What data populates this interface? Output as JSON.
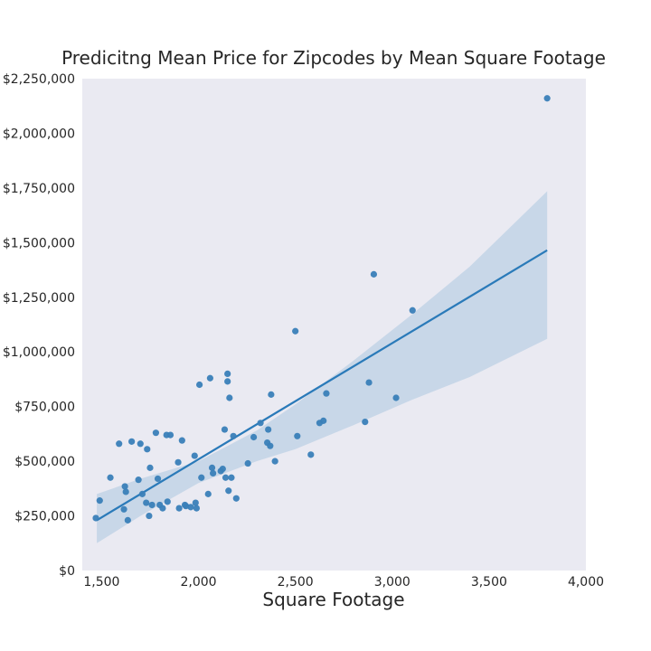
{
  "chart_data": {
    "type": "scatter",
    "title": "Predicitng Mean Price for Zipcodes by Mean Square Footage",
    "xlabel": "Square Footage",
    "ylabel": "",
    "xlim": [
      1400,
      4000
    ],
    "ylim": [
      0,
      2250000
    ],
    "grid": false,
    "background": "#eaeaf2",
    "x_ticks": [
      1500,
      2000,
      2500,
      3000,
      3500,
      4000
    ],
    "x_tick_labels": [
      "1,500",
      "2,000",
      "2,500",
      "3,000",
      "3,500",
      "4,000"
    ],
    "y_ticks": [
      0,
      250000,
      500000,
      750000,
      1000000,
      1250000,
      1500000,
      1750000,
      2000000,
      2250000
    ],
    "y_tick_labels": [
      "$0",
      "$250,000",
      "$500,000",
      "$750,000",
      "$1,000,000",
      "$1,250,000",
      "$1,500,000",
      "$1,750,000",
      "$2,000,000",
      "$2,250,000"
    ],
    "point_color": "#3a7fb8",
    "line_color": "#2a7ab9",
    "band_color": "#c8d7e8",
    "regression": {
      "x": [
        1475,
        3800
      ],
      "y": [
        230000,
        1465000
      ]
    },
    "confidence_band": {
      "x": [
        1475,
        1700,
        2000,
        2300,
        2500,
        2800,
        3100,
        3400,
        3800
      ],
      "upper": [
        350000,
        420000,
        500000,
        640000,
        760000,
        960000,
        1170000,
        1390000,
        1735000
      ],
      "lower": [
        125000,
        250000,
        400000,
        500000,
        555000,
        665000,
        780000,
        885000,
        1060000
      ]
    },
    "points": {
      "x": [
        1470,
        1490,
        1545,
        1590,
        1615,
        1620,
        1625,
        1635,
        1655,
        1690,
        1700,
        1710,
        1730,
        1735,
        1745,
        1750,
        1760,
        1780,
        1790,
        1800,
        1815,
        1835,
        1840,
        1855,
        1895,
        1900,
        1915,
        1930,
        1935,
        1960,
        1980,
        1985,
        1990,
        2005,
        2015,
        2050,
        2060,
        2070,
        2075,
        2115,
        2125,
        2135,
        2140,
        2150,
        2150,
        2155,
        2160,
        2170,
        2180,
        2195,
        2255,
        2285,
        2320,
        2355,
        2360,
        2370,
        2375,
        2395,
        2500,
        2510,
        2580,
        2625,
        2645,
        2660,
        2860,
        2880,
        2905,
        3020,
        3105,
        3800
      ],
      "y": [
        240000,
        320000,
        425000,
        580000,
        280000,
        385000,
        360000,
        230000,
        590000,
        415000,
        580000,
        350000,
        310000,
        555000,
        250000,
        470000,
        300000,
        630000,
        420000,
        300000,
        285000,
        620000,
        315000,
        620000,
        495000,
        285000,
        595000,
        300000,
        295000,
        290000,
        525000,
        310000,
        285000,
        850000,
        425000,
        350000,
        880000,
        470000,
        445000,
        455000,
        465000,
        645000,
        425000,
        900000,
        865000,
        365000,
        790000,
        425000,
        615000,
        330000,
        490000,
        610000,
        675000,
        585000,
        645000,
        570000,
        805000,
        500000,
        1095000,
        615000,
        530000,
        675000,
        685000,
        810000,
        680000,
        860000,
        1355000,
        790000,
        1190000,
        2160000
      ]
    }
  }
}
